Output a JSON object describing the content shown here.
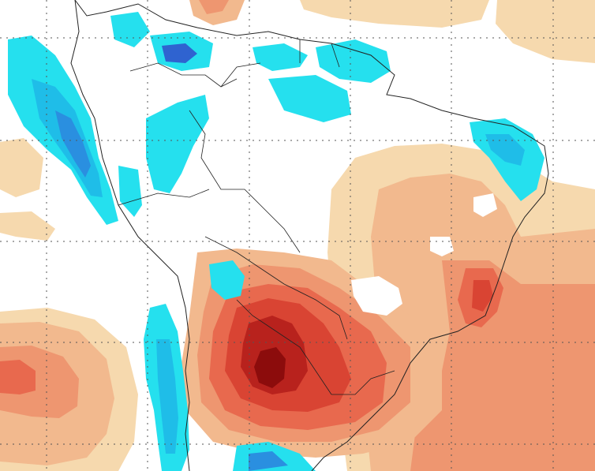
{
  "map": {
    "kind": "temperature-anomaly-shaded-map",
    "region": "South America",
    "legend_visible": false,
    "title_visible": false,
    "colors": {
      "background": "#ffffff",
      "warm_1": "#f6d9ae",
      "warm_2": "#f2b98e",
      "warm_3": "#ee9670",
      "warm_4": "#e8694e",
      "warm_5": "#d94433",
      "warm_6": "#b8221d",
      "warm_7": "#8c0c0c",
      "cool_1": "#25e0ee",
      "cool_2": "#1fbde8",
      "cool_3": "#2a8fe0",
      "cool_4": "#2f63d0",
      "coastline": "#222222",
      "gridline": "#555555"
    }
  }
}
